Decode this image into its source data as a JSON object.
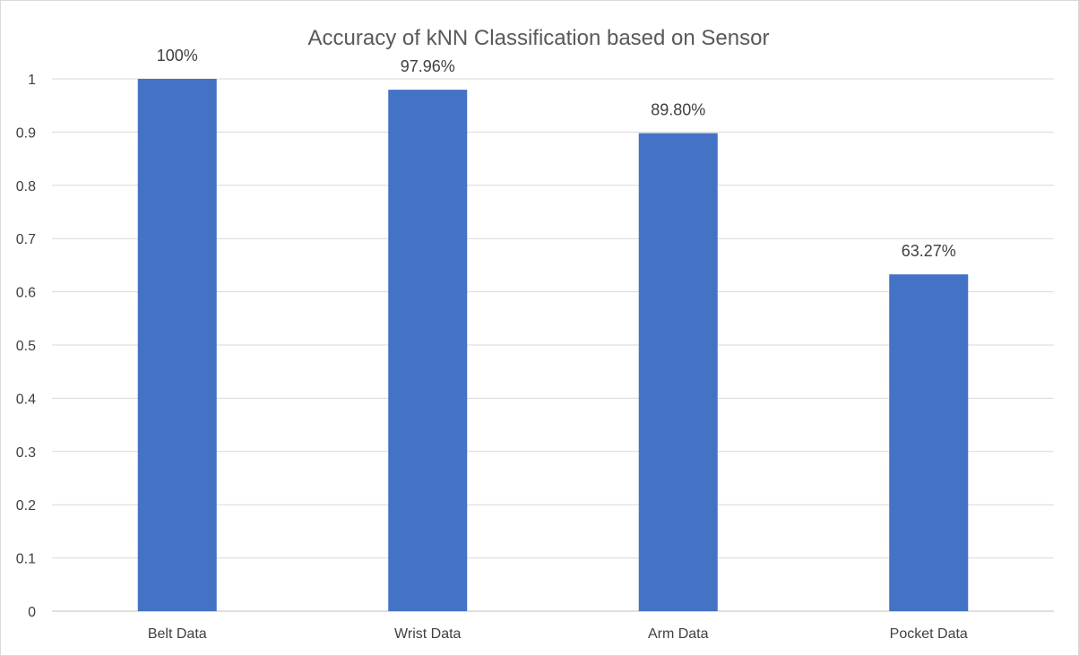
{
  "chart_data": {
    "type": "bar",
    "title": "Accuracy of kNN Classification based on Sensor",
    "categories": [
      "Belt Data",
      "Wrist Data",
      "Arm Data",
      "Pocket Data"
    ],
    "values": [
      1.0,
      0.9796,
      0.898,
      0.6327
    ],
    "data_labels": [
      "100%",
      "97.96%",
      "89.80%",
      "63.27%"
    ],
    "ylim": [
      0,
      1
    ],
    "yticks": [
      "0",
      "0.1",
      "0.2",
      "0.3",
      "0.4",
      "0.5",
      "0.6",
      "0.7",
      "0.8",
      "0.9",
      "1"
    ],
    "xlabel": "",
    "ylabel": "",
    "grid": true,
    "legend": "none",
    "bar_color": "#4472C4"
  }
}
